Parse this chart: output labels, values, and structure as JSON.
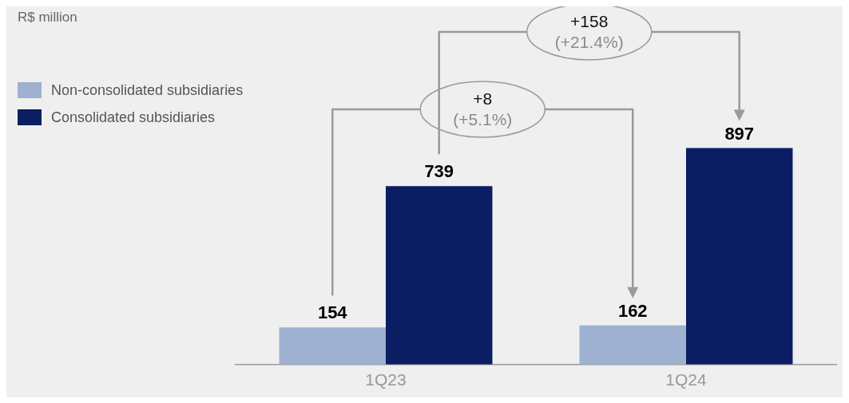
{
  "chart_data": {
    "type": "bar",
    "subtitle": "R$ million",
    "categories": [
      "1Q23",
      "1Q24"
    ],
    "series": [
      {
        "name": "Non-consolidated subsidiaries",
        "color": "#9eb1d0",
        "values": [
          154,
          162
        ]
      },
      {
        "name": "Consolidated subsidiaries",
        "color": "#0b1e63",
        "values": [
          739,
          897
        ]
      }
    ],
    "data_labels": true,
    "legend": "top left",
    "grid": false,
    "annotations": [
      "+8 (+5.1%)",
      "+158 (+21.4%)"
    ]
  }
}
